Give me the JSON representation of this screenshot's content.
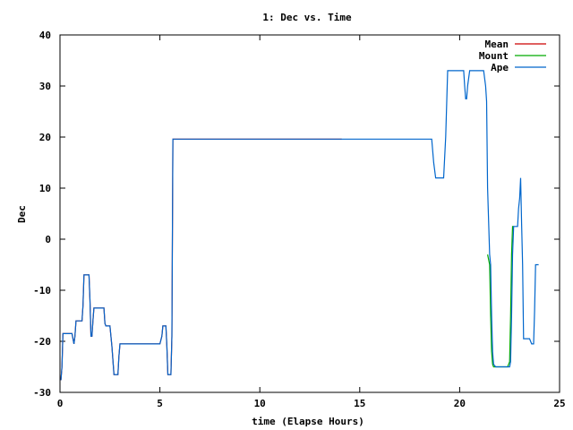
{
  "chart_data": {
    "type": "line",
    "title": "1: Dec vs. Time",
    "xlabel": "time (Elapse Hours)",
    "ylabel": "Dec",
    "xlim": [
      0,
      25
    ],
    "ylim": [
      -30,
      40
    ],
    "xticks": [
      0,
      5,
      10,
      15,
      20,
      25
    ],
    "yticks": [
      -30,
      -20,
      -10,
      0,
      10,
      20,
      30,
      40
    ],
    "grid": false,
    "legend": "top-right",
    "series": [
      {
        "name": "Mean",
        "color": "#cc0000",
        "x": [
          0,
          0.05,
          0.1,
          0.15,
          0.6,
          0.7,
          0.75,
          0.8,
          1.1,
          1.15,
          1.2,
          1.45,
          1.5,
          1.55,
          1.6,
          1.65,
          1.7,
          1.75,
          2.2,
          2.25,
          2.3,
          2.5,
          2.6,
          2.7,
          2.75,
          2.9,
          2.95,
          3.0,
          3.05,
          5.0,
          5.1,
          5.15,
          5.2,
          5.3,
          5.35,
          5.4,
          5.55,
          5.6,
          5.65,
          14.1
        ],
        "y": [
          -27.5,
          -27.5,
          -25,
          -18.5,
          -18.5,
          -20.5,
          -19,
          -16,
          -16,
          -13,
          -7,
          -7,
          -12,
          -19,
          -19,
          -16,
          -13.5,
          -13.5,
          -13.5,
          -16.5,
          -17,
          -17,
          -21,
          -26.5,
          -26.5,
          -26.5,
          -23,
          -20.5,
          -20.5,
          -20.5,
          -19,
          -17,
          -17,
          -17,
          -21,
          -26.5,
          -26.5,
          -19,
          19.6,
          19.6
        ]
      },
      {
        "name": "Mount",
        "color": "#00aa00",
        "x": [
          21.4,
          21.5,
          21.55,
          21.6,
          21.65,
          21.7,
          21.8,
          21.9,
          22.4,
          22.5,
          22.55,
          22.6,
          22.65,
          22.7
        ],
        "y": [
          -3,
          -5,
          -15,
          -22,
          -24.5,
          -25,
          -25,
          -25,
          -25,
          -24,
          -15,
          -3,
          2.5,
          2.5
        ]
      },
      {
        "name": "Ape",
        "color": "#0066cc",
        "x": [
          0,
          0.05,
          0.1,
          0.15,
          0.6,
          0.7,
          0.75,
          0.8,
          1.1,
          1.15,
          1.2,
          1.45,
          1.5,
          1.55,
          1.6,
          1.65,
          1.7,
          1.75,
          2.2,
          2.25,
          2.3,
          2.5,
          2.6,
          2.7,
          2.75,
          2.9,
          2.95,
          3.0,
          3.05,
          5.0,
          5.1,
          5.15,
          5.2,
          5.3,
          5.35,
          5.4,
          5.55,
          5.6,
          5.65,
          14.1,
          18.5,
          18.6,
          18.7,
          18.8,
          19.2,
          19.3,
          19.4,
          19.5,
          20.0,
          20.2,
          20.25,
          20.3,
          20.35,
          20.4,
          20.5,
          20.55,
          21.2,
          21.3,
          21.35,
          21.4,
          21.5,
          21.55,
          21.6,
          21.65,
          21.7,
          21.8,
          21.9,
          22.4,
          22.5,
          22.55,
          22.6,
          22.65,
          22.7,
          22.9,
          22.95,
          23.0,
          23.05,
          23.1,
          23.15,
          23.2,
          23.3,
          23.4,
          23.5,
          23.6,
          23.7,
          23.75,
          23.8,
          23.95
        ],
        "y": [
          -27.5,
          -27.5,
          -25,
          -18.5,
          -18.5,
          -20.5,
          -19,
          -16,
          -16,
          -13,
          -7,
          -7,
          -12,
          -19,
          -19,
          -16,
          -13.5,
          -13.5,
          -13.5,
          -16.5,
          -17,
          -17,
          -21,
          -26.5,
          -26.5,
          -26.5,
          -23,
          -20.5,
          -20.5,
          -20.5,
          -19,
          -17,
          -17,
          -17,
          -21,
          -26.5,
          -26.5,
          -19,
          19.6,
          19.6,
          19.6,
          19.6,
          15,
          12,
          12,
          20,
          33,
          33,
          33,
          33,
          30,
          27.5,
          27.5,
          30,
          33,
          33,
          33,
          30,
          27,
          10,
          -3,
          -5,
          -15,
          -22,
          -24.5,
          -25,
          -25,
          -25,
          -25,
          -24,
          -15,
          -3,
          2.5,
          2.5,
          6,
          8,
          12,
          3,
          -5,
          -19.5,
          -19.5,
          -19.5,
          -19.5,
          -20.5,
          -20.5,
          -14,
          -5,
          -5
        ]
      }
    ]
  }
}
